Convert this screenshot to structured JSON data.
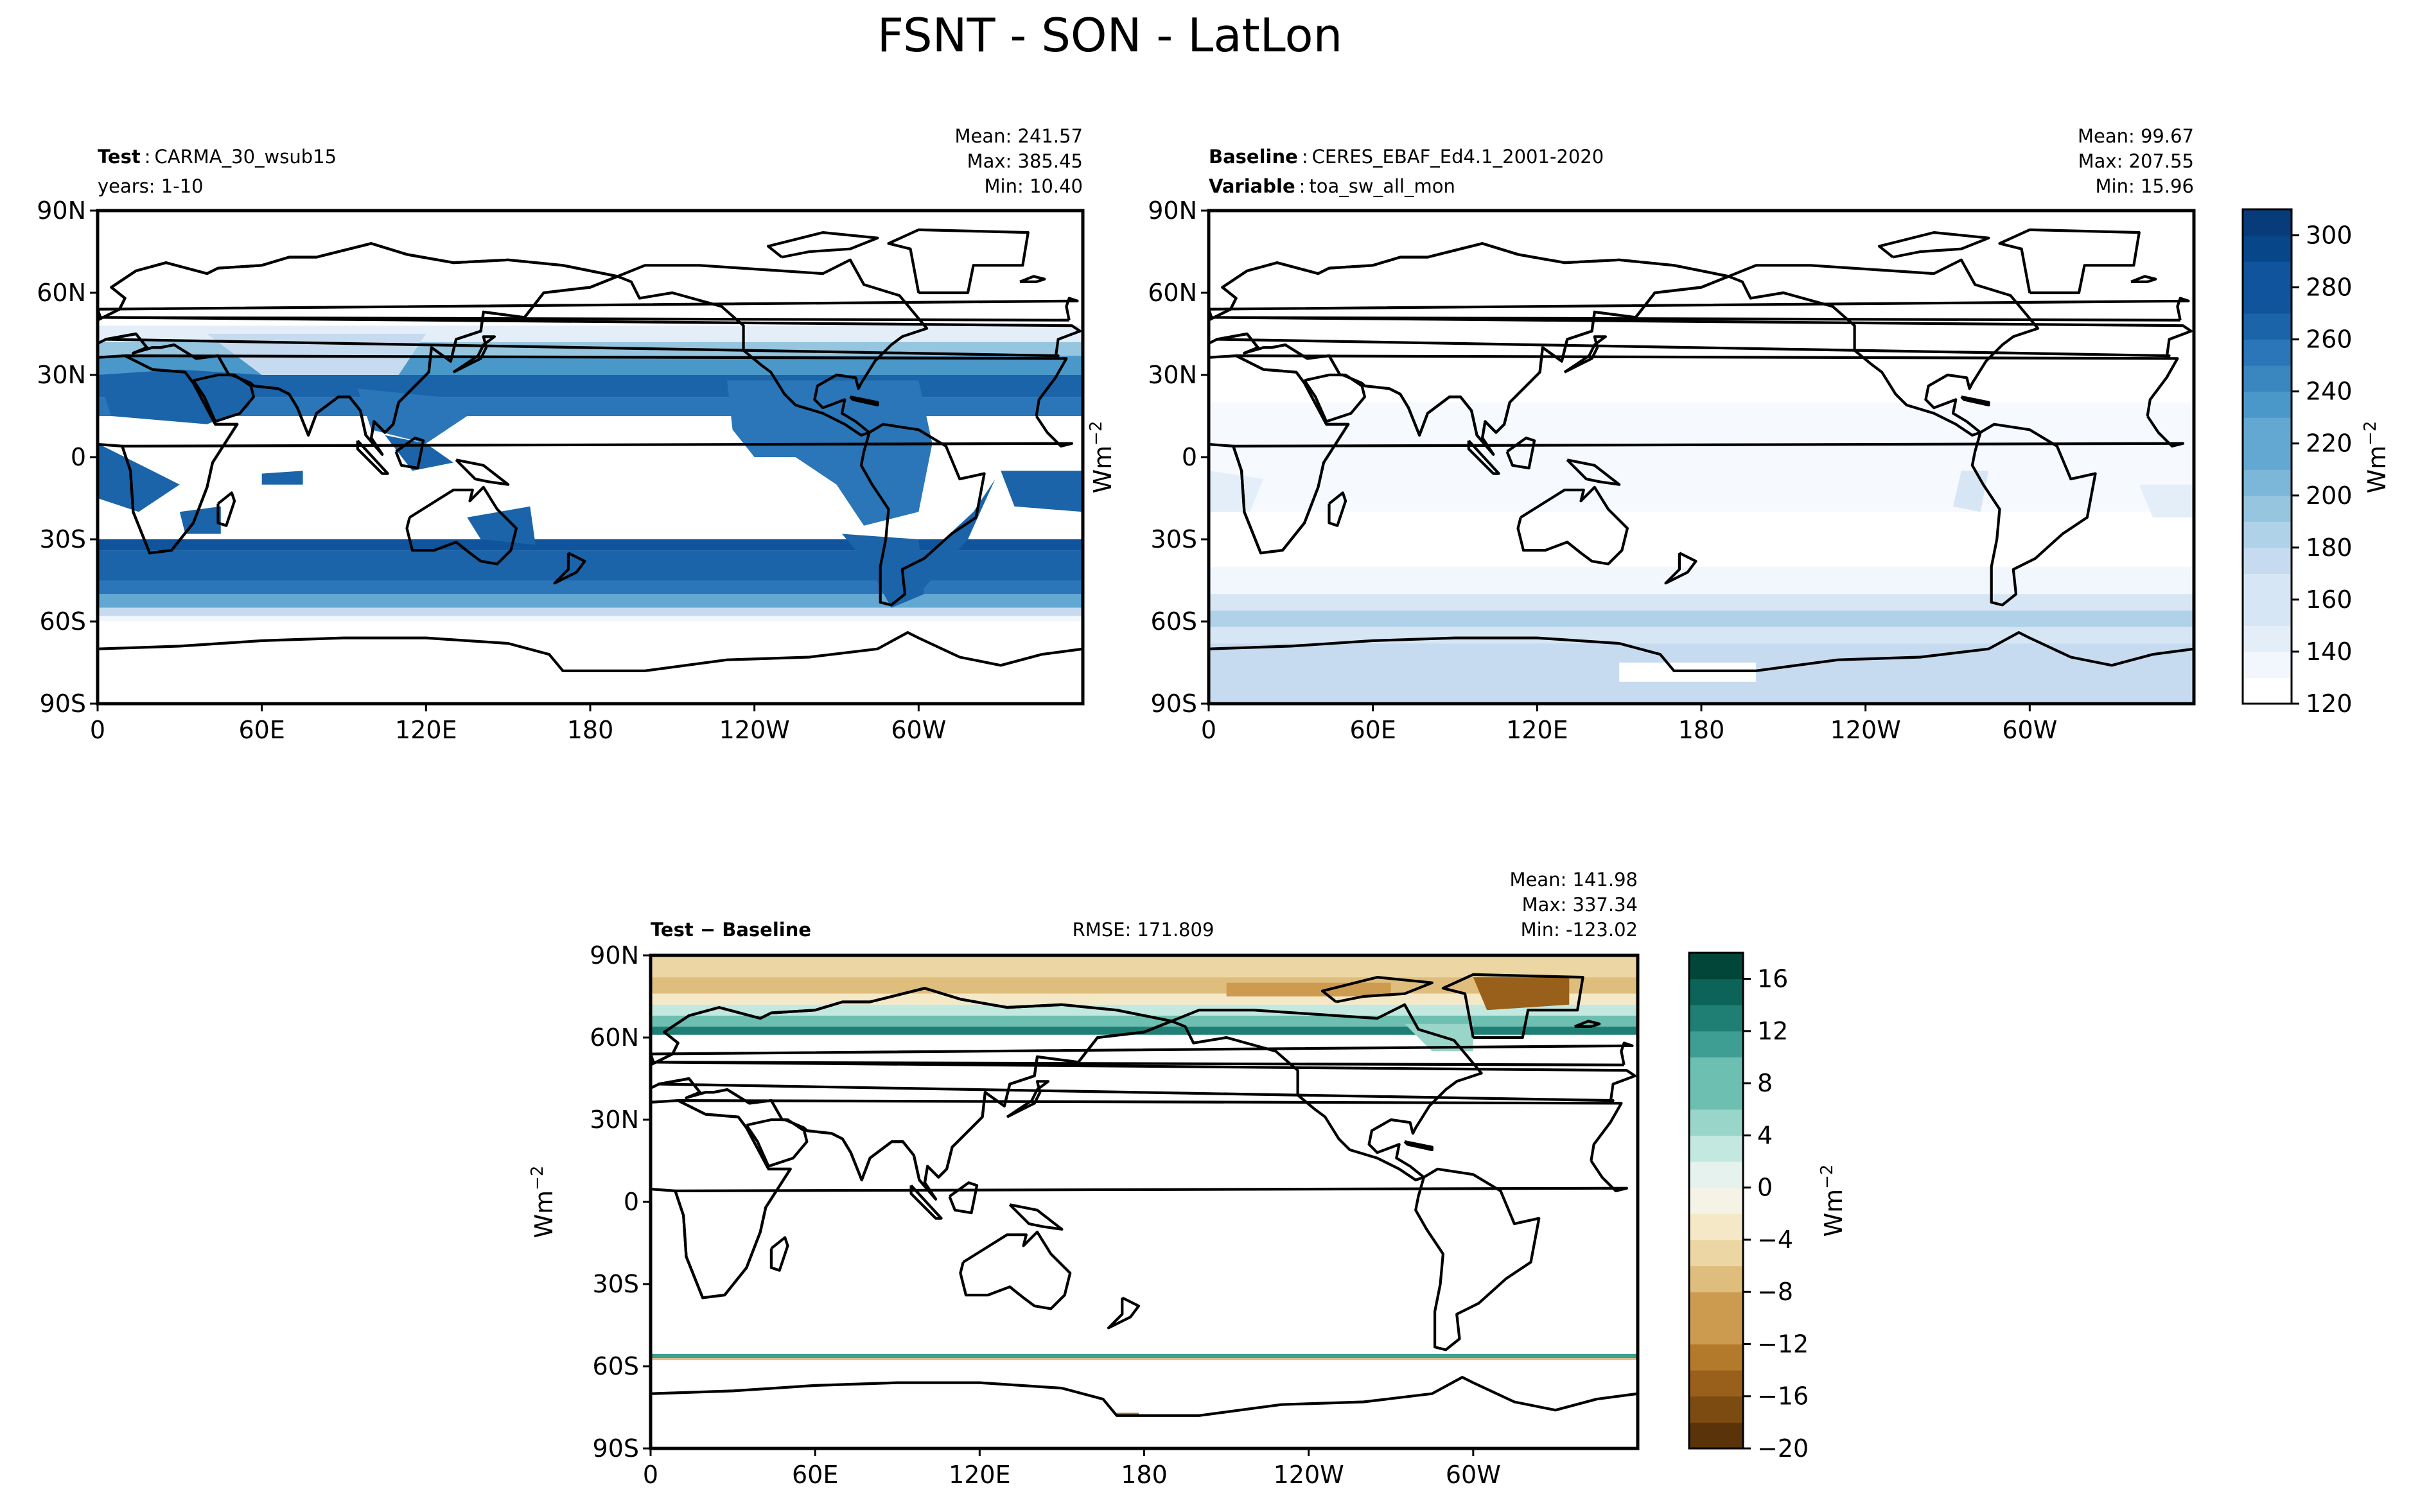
{
  "figure": {
    "title": "FSNT - SON - LatLon"
  },
  "chart_data": [
    {
      "type": "heatmap",
      "id": "test",
      "label_bold": "Test",
      "label_text": "CARMA_30_wsub15",
      "line2": "years: 1-10",
      "stats": [
        "Mean: 241.57",
        "Max: 385.45",
        "Min: 10.40"
      ],
      "x_ticks": [
        "0",
        "60E",
        "120E",
        "180",
        "120W",
        "60W"
      ],
      "y_ticks": [
        "90N",
        "60N",
        "30N",
        "0",
        "30S",
        "60S",
        "90S"
      ],
      "x_range_deg_east": [
        0,
        360
      ],
      "y_range_deg_north": [
        -90,
        90
      ],
      "colormap": "Blues",
      "colorbar_range": [
        120,
        310
      ],
      "summary": {
        "mean": 241.57,
        "max": 385.45,
        "min": 10.4
      }
    },
    {
      "type": "heatmap",
      "id": "baseline",
      "label_bold": "Baseline",
      "label_text": "CERES_EBAF_Ed4.1_2001-2020",
      "line2_bold": "Variable",
      "line2_text": "toa_sw_all_mon",
      "stats": [
        "Mean: 99.67",
        "Max: 207.55",
        "Min: 15.96"
      ],
      "x_ticks": [
        "0",
        "60E",
        "120E",
        "180",
        "120W",
        "60W"
      ],
      "y_ticks": [
        "90N",
        "60N",
        "30N",
        "0",
        "30S",
        "60S",
        "90S"
      ],
      "x_range_deg_east": [
        0,
        360
      ],
      "y_range_deg_north": [
        -90,
        90
      ],
      "ylabel": "Wm",
      "ylabel_sup": "−2",
      "colormap": "Blues",
      "colorbar_ticks": [
        "120",
        "140",
        "160",
        "180",
        "200",
        "220",
        "240",
        "260",
        "280",
        "300"
      ],
      "colorbar_label": "Wm",
      "colorbar_label_sup": "−2",
      "colorbar_range": [
        120,
        310
      ],
      "summary": {
        "mean": 99.67,
        "max": 207.55,
        "min": 15.96
      }
    },
    {
      "type": "heatmap",
      "id": "diff",
      "label_bold": "Test − Baseline",
      "rmse": "RMSE: 171.809",
      "stats": [
        "Mean: 141.98",
        "Max: 337.34",
        "Min: -123.02"
      ],
      "x_ticks": [
        "0",
        "60E",
        "120E",
        "180",
        "120W",
        "60W"
      ],
      "y_ticks": [
        "90N",
        "60N",
        "30N",
        "0",
        "30S",
        "60S",
        "90S"
      ],
      "x_range_deg_east": [
        0,
        360
      ],
      "y_range_deg_north": [
        -90,
        90
      ],
      "ylabel": "Wm",
      "ylabel_sup": "−2",
      "colormap": "BrBG",
      "colorbar_ticks": [
        "16",
        "12",
        "8",
        "4",
        "0",
        "−4",
        "−8",
        "−12",
        "−16",
        "−20"
      ],
      "colorbar_label": "Wm",
      "colorbar_label_sup": "−2",
      "colorbar_range": [
        -20,
        18
      ],
      "summary": {
        "mean": 141.98,
        "max": 337.34,
        "min": -123.02,
        "rmse": 171.809
      }
    }
  ],
  "colors": {
    "blues": [
      "#ffffff",
      "#f2f7fd",
      "#e3eef9",
      "#d6e6f4",
      "#c6dbef",
      "#b0d2e8",
      "#95c5df",
      "#7cb6d9",
      "#62a8d2",
      "#4a98c9",
      "#3a87c0",
      "#2a76b8",
      "#1b64a9",
      "#0f549c",
      "#08468a",
      "#083b7a"
    ],
    "brbg": [
      "#5a330a",
      "#7c4b11",
      "#98601a",
      "#b47a2c",
      "#cc9b4f",
      "#dfbd7d",
      "#ecd6a4",
      "#f5e8c7",
      "#f5f2e6",
      "#e5f2ee",
      "#c2e8e0",
      "#99d5c9",
      "#6cbfb1",
      "#3f9e93",
      "#1f7f74",
      "#0c6358",
      "#014638"
    ]
  }
}
